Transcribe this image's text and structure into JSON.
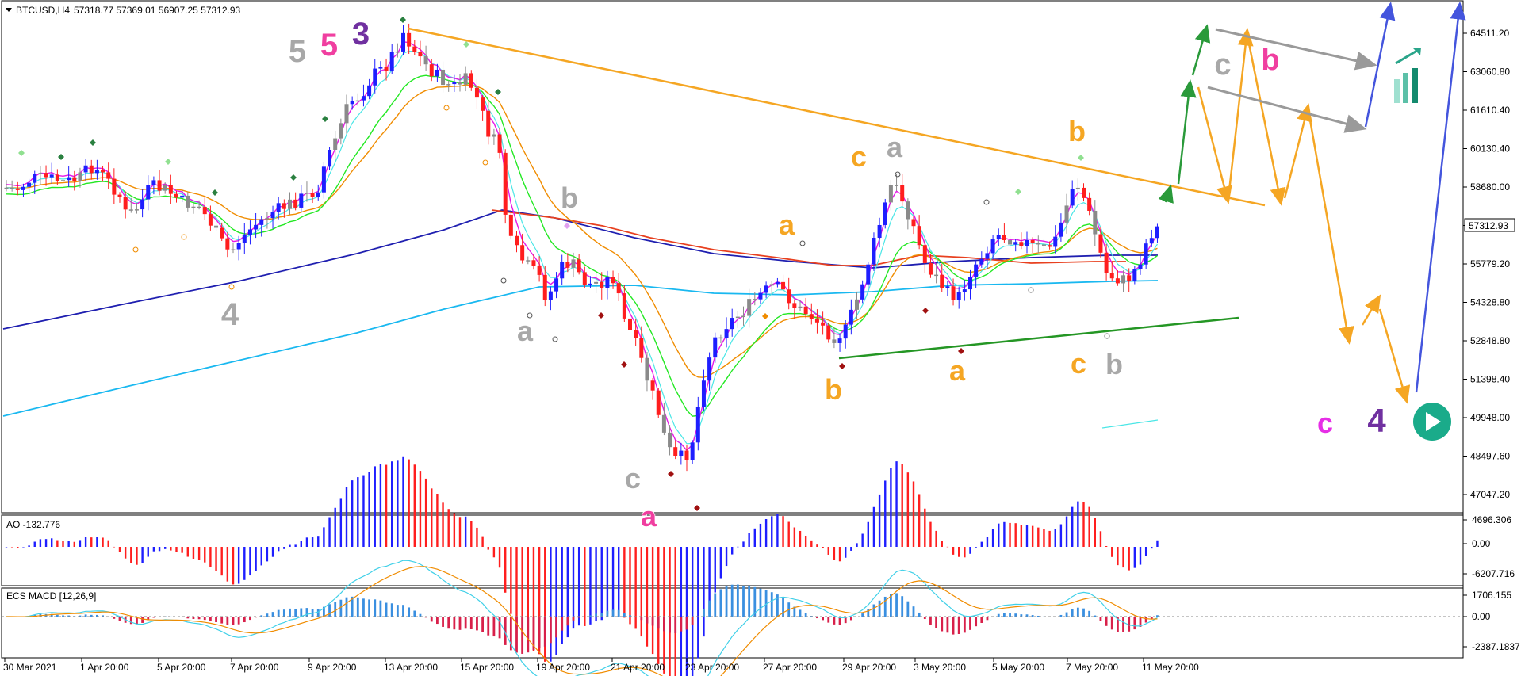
{
  "header": {
    "symbol_label": "BTCUSD,H4",
    "ohlc": "57318.77 57369.01 56907.25 57312.93"
  },
  "colors": {
    "bull": "#1e1eff",
    "bear": "#ff1e1e",
    "neutral": "#8a8a8a",
    "ema_blue": "#1f1fb0",
    "ema_red": "#e8401f",
    "ema_cyan": "#19b8f0",
    "ema_orange": "#f08c00",
    "ema_green": "#23e823",
    "ema_aqua": "#4ae6e6",
    "ema_magenta": "#e619e6",
    "trend_orange": "#f5a623",
    "trend_green": "#249624",
    "arrow_green": "#2a9a3a",
    "arrow_orange": "#f5a623",
    "arrow_gray": "#9a9a9a",
    "arrow_blue": "#4455dd",
    "wave_gray": "#a8a8a8",
    "wave_pink": "#f03fa0",
    "wave_purple": "#7030a0",
    "wave_orange": "#f5a623",
    "wave_magenta": "#e62ee6",
    "price_tag_bg": "#ffffff",
    "play_button": "#1aab8a"
  },
  "chart_data": [
    {
      "type": "candlestick",
      "title": "BTCUSD,H4",
      "price_axis_ticks": [
        "64511.20",
        "63060.80",
        "61610.40",
        "60130.40",
        "58680.00",
        "57229.60",
        "55779.20",
        "54328.80",
        "52848.80",
        "51398.40",
        "49948.00",
        "48497.60",
        "47047.20"
      ],
      "current_price": "57312.93",
      "ylim": [
        46500,
        65500
      ],
      "x_labels": [
        "30 Mar 2021",
        "1 Apr 20:00",
        "5 Apr 20:00",
        "7 Apr 20:00",
        "9 Apr 20:00",
        "13 Apr 20:00",
        "15 Apr 20:00",
        "19 Apr 20:00",
        "21 Apr 20:00",
        "23 Apr 20:00",
        "27 Apr 20:00",
        "29 Apr 20:00",
        "3 May 20:00",
        "5 May 20:00",
        "7 May 20:00",
        "11 May 20:00"
      ],
      "wave_labels": [
        {
          "text": "5",
          "color": "gray"
        },
        {
          "text": "5",
          "color": "pink"
        },
        {
          "text": "3",
          "color": "purple"
        },
        {
          "text": "4",
          "color": "gray"
        },
        {
          "text": "b",
          "color": "gray"
        },
        {
          "text": "a",
          "color": "gray"
        },
        {
          "text": "c",
          "color": "gray"
        },
        {
          "text": "a",
          "color": "pink"
        },
        {
          "text": "a",
          "color": "orange"
        },
        {
          "text": "b",
          "color": "orange"
        },
        {
          "text": "c",
          "color": "orange"
        },
        {
          "text": "a",
          "color": "gray"
        },
        {
          "text": "a",
          "color": "orange"
        },
        {
          "text": "b",
          "color": "orange"
        },
        {
          "text": "c",
          "color": "orange"
        },
        {
          "text": "b",
          "color": "gray"
        },
        {
          "text": "c",
          "color": "gray"
        },
        {
          "text": "b",
          "color": "pink"
        },
        {
          "text": "c",
          "color": "magenta"
        },
        {
          "text": "4",
          "color": "purple"
        }
      ],
      "grid": false
    },
    {
      "type": "bar",
      "title": "AO -132.776",
      "axis_ticks": [
        "4696.306",
        "0.00",
        "-6207.716"
      ],
      "ylim": [
        -6207.716,
        4696.306
      ]
    },
    {
      "type": "bar",
      "title": "ECS MACD [12,26,9]",
      "axis_ticks": [
        "1706.155",
        "0.00",
        "-2387.1837"
      ],
      "ylim": [
        -2387.1837,
        1706.155
      ]
    }
  ]
}
